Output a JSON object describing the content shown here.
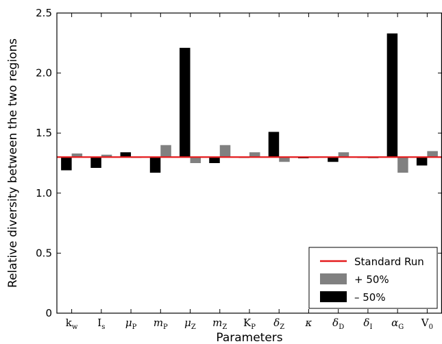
{
  "chart_data": {
    "type": "bar",
    "title": "",
    "xlabel": "Parameters",
    "ylabel": "Relative diversity between the two regions",
    "ylim": [
      0,
      2.5
    ],
    "yticks": [
      "0",
      "0.5",
      "1.0",
      "1.5",
      "2.0",
      "2.5"
    ],
    "baseline": 1.3,
    "categories": [
      "k_w",
      "I_s",
      "μ_P",
      "m_P",
      "μ_Z",
      "m_Z",
      "K_P",
      "δ_Z",
      "κ",
      "δ_D",
      "δ_I",
      "α_G",
      "V_0"
    ],
    "category_labels": [
      {
        "main": "k",
        "sub": "w",
        "italic": false
      },
      {
        "main": "I",
        "sub": "s",
        "italic": false
      },
      {
        "main": "μ",
        "sub": "P",
        "italic": true
      },
      {
        "main": "m",
        "sub": "P",
        "italic": true
      },
      {
        "main": "μ",
        "sub": "Z",
        "italic": true
      },
      {
        "main": "m",
        "sub": "Z",
        "italic": true
      },
      {
        "main": "K",
        "sub": "P",
        "italic": false
      },
      {
        "main": "δ",
        "sub": "Z",
        "italic": true
      },
      {
        "main": "κ",
        "sub": "",
        "italic": true
      },
      {
        "main": "δ",
        "sub": "D",
        "italic": true
      },
      {
        "main": "δ",
        "sub": "I",
        "italic": true
      },
      {
        "main": "α",
        "sub": "G",
        "italic": true
      },
      {
        "main": "V",
        "sub": "0",
        "italic": false
      }
    ],
    "series": [
      {
        "name": "– 50%",
        "color": "#000000",
        "values": [
          1.19,
          1.21,
          1.34,
          1.17,
          2.21,
          1.25,
          1.3,
          1.51,
          1.29,
          1.26,
          1.3,
          2.33,
          1.23
        ]
      },
      {
        "name": "+ 50%",
        "color": "#808080",
        "values": [
          1.33,
          1.32,
          1.3,
          1.4,
          1.25,
          1.4,
          1.34,
          1.26,
          1.3,
          1.34,
          1.29,
          1.17,
          1.35
        ]
      }
    ],
    "reference_line": {
      "name": "Standard Run",
      "value": 1.3,
      "color": "#e41a1c"
    },
    "legend": {
      "placement": "lower-right",
      "entries": [
        {
          "label": "Standard Run",
          "kind": "line",
          "color": "#e41a1c"
        },
        {
          "label": "+ 50%",
          "kind": "patch",
          "color": "#808080"
        },
        {
          "label": "– 50%",
          "kind": "patch",
          "color": "#000000"
        }
      ]
    },
    "grid": false
  }
}
